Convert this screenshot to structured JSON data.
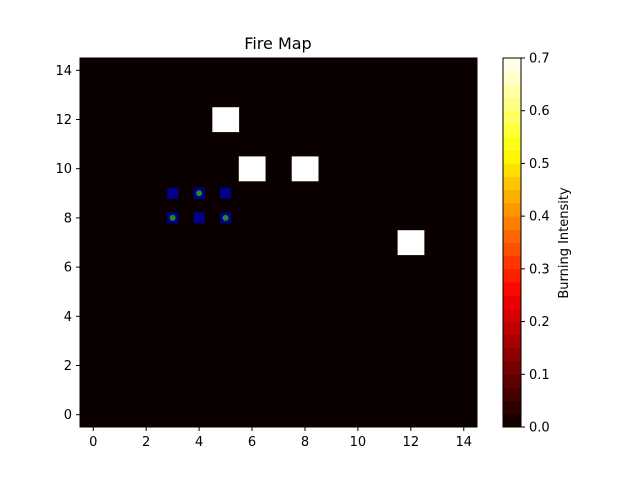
{
  "chart_data": {
    "type": "heatmap",
    "title": "Fire Map",
    "xlabel": "",
    "ylabel": "",
    "grid_size": 15,
    "grid": false,
    "xlim": [
      -0.5,
      14.5
    ],
    "ylim": [
      -0.5,
      14.5
    ],
    "x_ticks": [
      "0",
      "2",
      "4",
      "6",
      "8",
      "10",
      "12",
      "14"
    ],
    "y_ticks": [
      "0",
      "2",
      "4",
      "6",
      "8",
      "10",
      "12",
      "14"
    ],
    "background_value": 0.0,
    "burning_cells": [
      {
        "x": 5,
        "y": 12,
        "value": 0.7
      },
      {
        "x": 6,
        "y": 10,
        "value": 0.7
      },
      {
        "x": 8,
        "y": 10,
        "value": 0.7
      },
      {
        "x": 12,
        "y": 7,
        "value": 0.7
      }
    ],
    "blue_square_markers": [
      {
        "x": 3,
        "y": 9
      },
      {
        "x": 4,
        "y": 9
      },
      {
        "x": 5,
        "y": 9
      },
      {
        "x": 3,
        "y": 8
      },
      {
        "x": 4,
        "y": 8
      },
      {
        "x": 5,
        "y": 8
      }
    ],
    "green_dot_markers": [
      {
        "x": 4,
        "y": 9
      },
      {
        "x": 3,
        "y": 8
      },
      {
        "x": 5,
        "y": 8
      }
    ],
    "marker_colors": {
      "square": "#00008b",
      "dot": "#228b22"
    },
    "colorbar": {
      "label": "Burning Intensity",
      "colormap": "hot",
      "range": [
        0.0,
        0.7
      ],
      "levels": 28,
      "tick_labels": [
        "0.0",
        "0.1",
        "0.2",
        "0.3",
        "0.4",
        "0.5",
        "0.6",
        "0.7"
      ]
    }
  }
}
